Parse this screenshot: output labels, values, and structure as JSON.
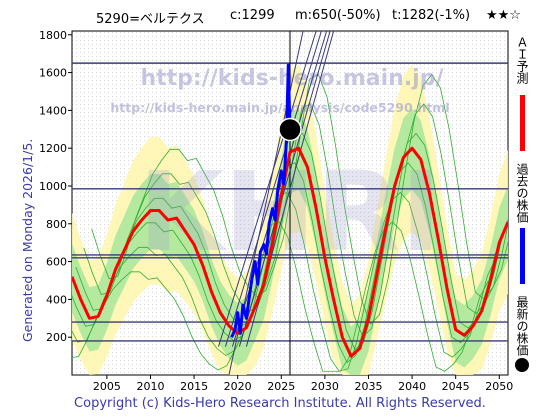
{
  "header": {
    "code_name": "5290=ベルテクス",
    "current": "c:1299",
    "median": "m:650(-50%)",
    "target": "t:1282(-1%)",
    "rating": "★★☆"
  },
  "side_label": "Generated on Monday 2026/1/5.",
  "footer": "Copyright (c) Kids-Hero Research Institute. All Rights Reserved.",
  "watermark": {
    "url1": "http://kids-hero.main.jp/",
    "url2": "http://kids-hero.main.jp/analysis/code5290.html",
    "big": "KHRI"
  },
  "legend": [
    {
      "label": "ＡＩ予測",
      "color": "#ff0000",
      "marker": "line"
    },
    {
      "label": "過去の株価",
      "color": "#0000ff",
      "marker": "line"
    },
    {
      "label": "最新の株価",
      "color": "#000000",
      "marker": "dot"
    }
  ],
  "chart_data": {
    "type": "line",
    "xlim": [
      2001,
      2051
    ],
    "ylim": [
      0,
      1820
    ],
    "x_ticks": [
      2005,
      2010,
      2015,
      2020,
      2025,
      2030,
      2035,
      2040,
      2045,
      2050
    ],
    "y_ticks": [
      200,
      400,
      600,
      800,
      1000,
      1200,
      1400,
      1600,
      1800
    ],
    "horizontal_lines": [
      1650,
      985,
      635,
      620,
      280,
      180
    ],
    "current_point": {
      "x": 2026.0,
      "y": 1299
    },
    "ai_forecast": {
      "name": "ＡＩ予測",
      "color": "#ff0000",
      "x": [
        2001,
        2002,
        2003,
        2004,
        2005,
        2006,
        2007,
        2008,
        2009,
        2010,
        2011,
        2012,
        2013,
        2014,
        2015,
        2016,
        2017,
        2018,
        2019,
        2020,
        2021,
        2022,
        2023,
        2024,
        2025,
        2026,
        2027,
        2028,
        2029,
        2030,
        2031,
        2032,
        2033,
        2034,
        2035,
        2036,
        2037,
        2038,
        2039,
        2040,
        2041,
        2042,
        2043,
        2044,
        2045,
        2046,
        2047,
        2048,
        2049,
        2050,
        2051
      ],
      "y": [
        520,
        400,
        300,
        310,
        420,
        560,
        660,
        760,
        820,
        870,
        870,
        820,
        830,
        760,
        690,
        580,
        440,
        330,
        260,
        220,
        250,
        360,
        480,
        700,
        950,
        1180,
        1200,
        1100,
        880,
        620,
        400,
        200,
        100,
        140,
        300,
        540,
        780,
        1000,
        1150,
        1200,
        1140,
        960,
        720,
        460,
        240,
        210,
        260,
        340,
        500,
        700,
        810
      ]
    },
    "past_price": {
      "name": "過去の株価",
      "color": "#0000ff",
      "x": [
        2019.3,
        2019.7,
        2020.0,
        2020.3,
        2020.6,
        2021.0,
        2021.3,
        2021.6,
        2022.0,
        2022.3,
        2022.6,
        2023.0,
        2023.3,
        2023.6,
        2024.0,
        2024.3,
        2024.6,
        2025.0,
        2025.3,
        2025.6,
        2025.8,
        2026.0
      ],
      "y": [
        200,
        240,
        330,
        220,
        370,
        300,
        400,
        500,
        600,
        480,
        650,
        690,
        640,
        800,
        880,
        820,
        980,
        1080,
        1010,
        1250,
        1640,
        1299
      ]
    }
  }
}
